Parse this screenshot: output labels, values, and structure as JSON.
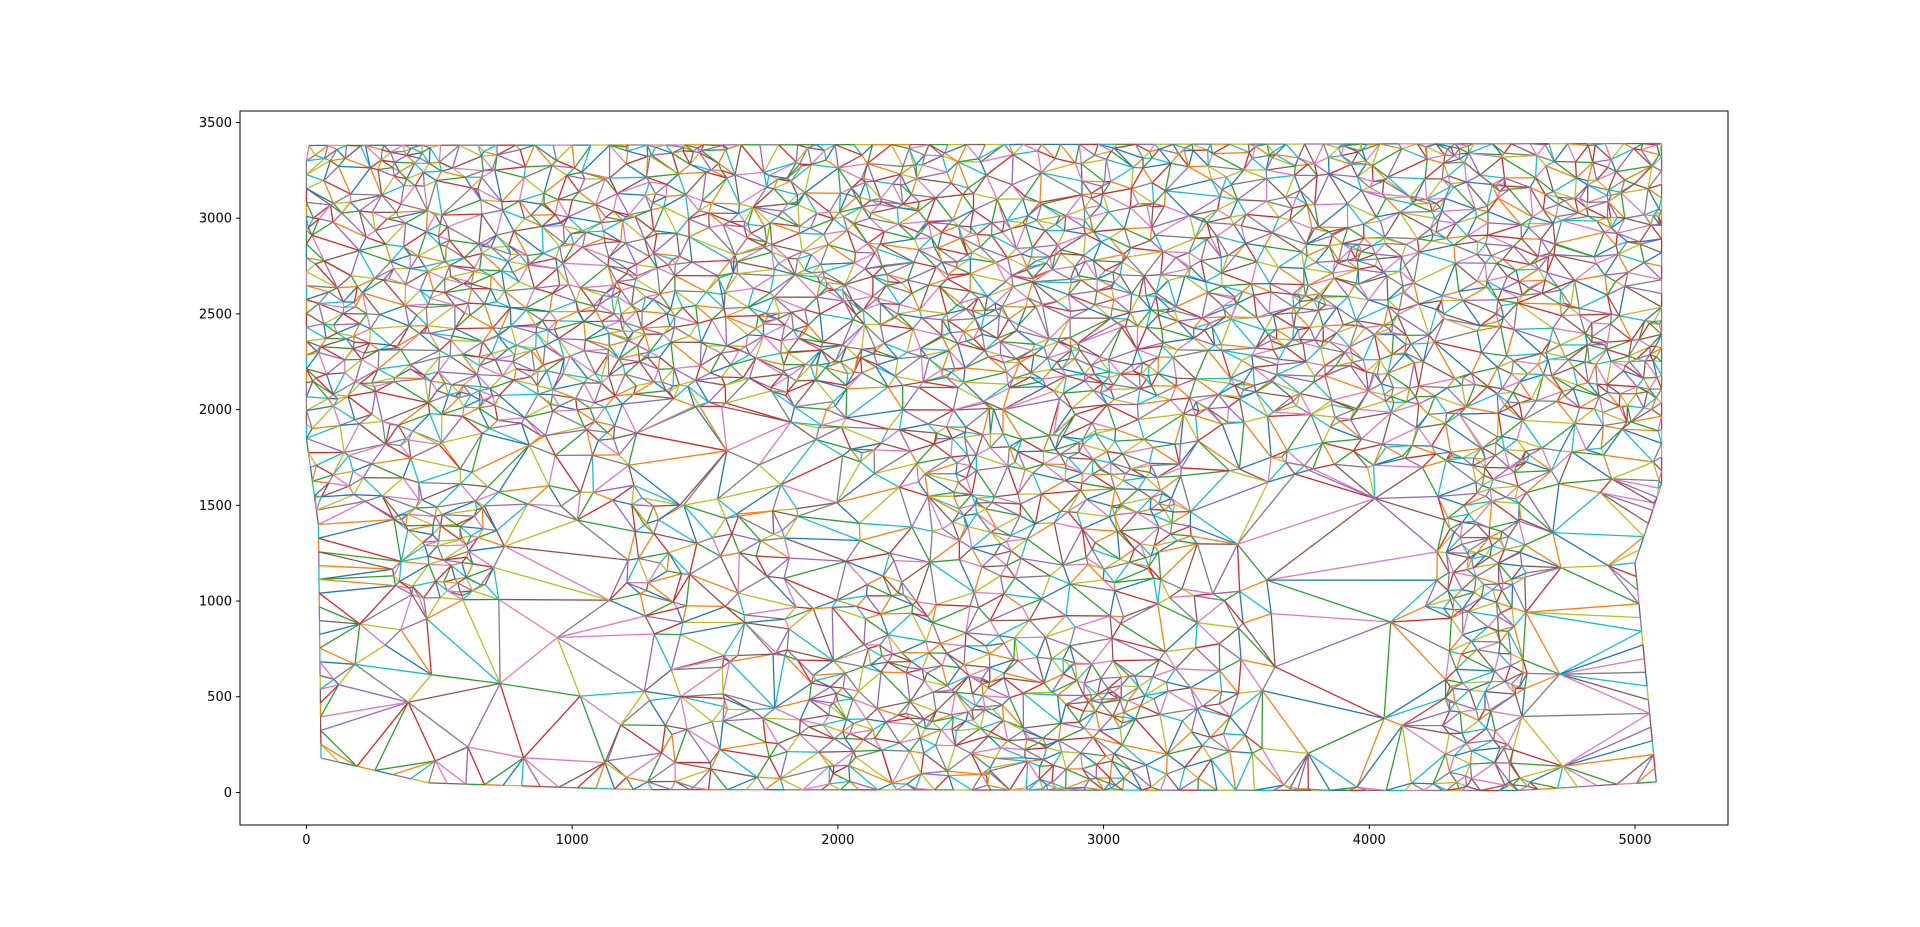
{
  "chart_data": {
    "type": "line",
    "title": "",
    "xlabel": "",
    "ylabel": "",
    "xlim": [
      -250,
      5350
    ],
    "ylim": [
      -170,
      3560
    ],
    "xticks": [
      0,
      1000,
      2000,
      3000,
      4000,
      5000
    ],
    "yticks": [
      0,
      500,
      1000,
      1500,
      2000,
      2500,
      3000,
      3500
    ],
    "xtick_labels": [
      "0",
      "1000",
      "2000",
      "3000",
      "4000",
      "5000"
    ],
    "ytick_labels": [
      "0",
      "500",
      "1000",
      "1500",
      "2000",
      "2500",
      "3000",
      "3500"
    ],
    "grid": false,
    "legend": "none",
    "description_of_marks": "Delaunay-style triangulation mesh of several thousand short line segments, each drawn as its own series cycling through the default color cycle.",
    "colors": [
      "#1f77b4",
      "#ff7f0e",
      "#2ca02c",
      "#d62728",
      "#9467bd",
      "#8c564b",
      "#e377c2",
      "#7f7f7f",
      "#bcbd22",
      "#17becf"
    ],
    "mesh_extent": {
      "x": [
        0,
        5100
      ],
      "y": [
        0,
        3400
      ]
    },
    "outline": [
      [
        10,
        3380
      ],
      [
        5100,
        3390
      ],
      [
        5100,
        1610
      ],
      [
        5000,
        1200
      ],
      [
        5080,
        55
      ],
      [
        4560,
        10
      ],
      [
        1230,
        15
      ],
      [
        460,
        50
      ],
      [
        55,
        180
      ],
      [
        45,
        1400
      ],
      [
        0,
        1850
      ],
      [
        0,
        3300
      ]
    ],
    "sparse_regions": [
      {
        "x": [
          50,
          1200
        ],
        "y": [
          50,
          1500
        ]
      },
      {
        "x": [
          1250,
          1700
        ],
        "y": [
          1550,
          1990
        ]
      },
      {
        "x": [
          3650,
          4250
        ],
        "y": [
          50,
          1200
        ]
      },
      {
        "x": [
          4600,
          5050
        ],
        "y": [
          100,
          1550
        ]
      },
      {
        "x": [
          3450,
          4250
        ],
        "y": [
          1200,
          1650
        ]
      }
    ],
    "dense_regions": [
      {
        "x": [
          0,
          5100
        ],
        "y": [
          2000,
          3400
        ]
      },
      {
        "x": [
          2400,
          3300
        ],
        "y": [
          1100,
          1900
        ]
      },
      {
        "x": [
          4250,
          4600
        ],
        "y": [
          0,
          1900
        ]
      },
      {
        "x": [
          320,
          750
        ],
        "y": [
          1000,
          1600
        ]
      },
      {
        "x": [
          1950,
          3100
        ],
        "y": [
          0,
          700
        ]
      }
    ]
  }
}
